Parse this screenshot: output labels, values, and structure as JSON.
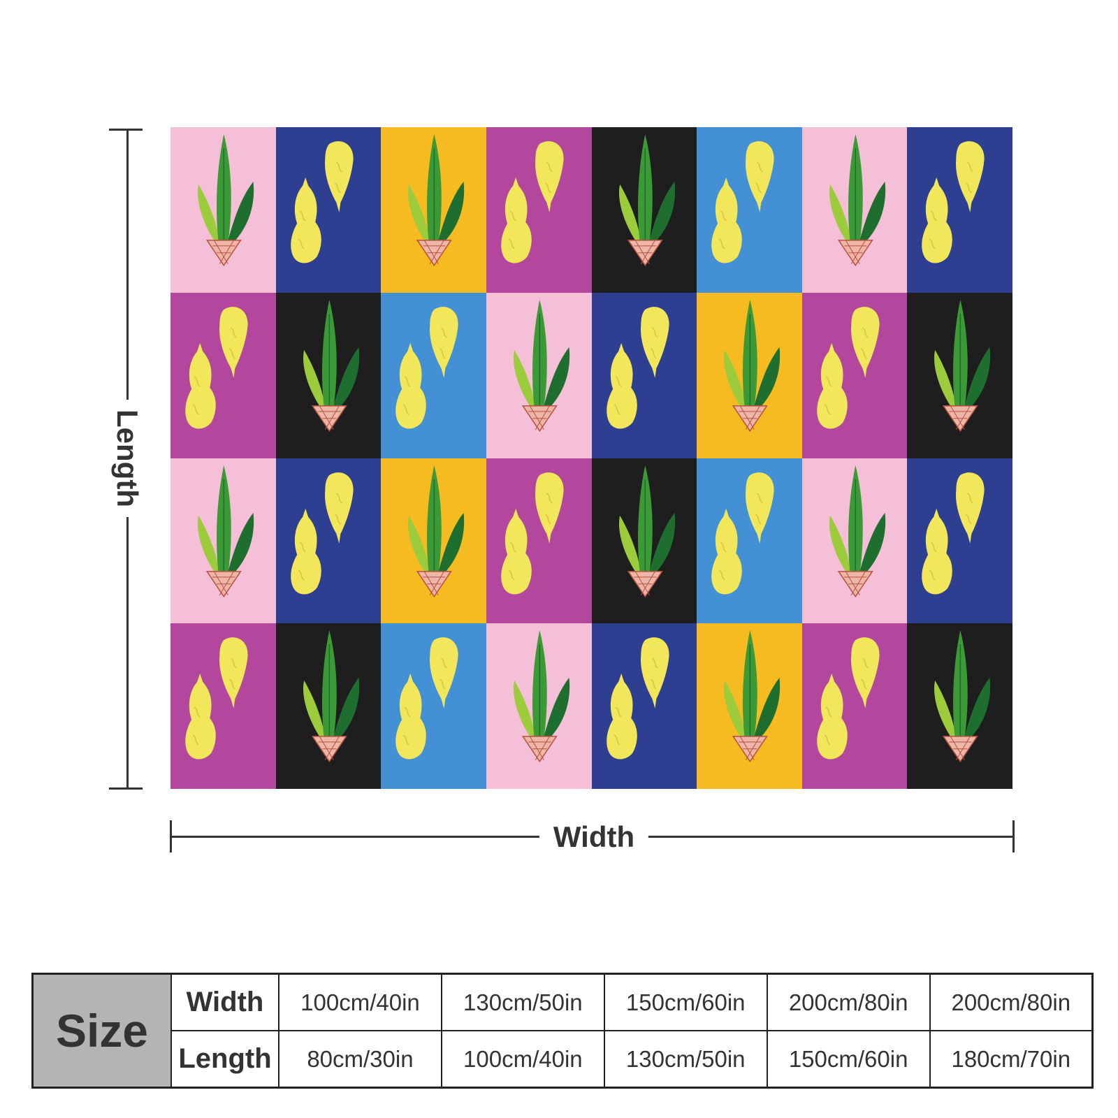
{
  "labels": {
    "length": "Length",
    "width": "Width"
  },
  "size_table": {
    "header": "Size",
    "rows": [
      {
        "label": "Width",
        "values": [
          "100cm/40in",
          "130cm/50in",
          "150cm/60in",
          "200cm/80in",
          "200cm/80in"
        ]
      },
      {
        "label": "Length",
        "values": [
          "80cm/30in",
          "100cm/40in",
          "130cm/50in",
          "150cm/60in",
          "180cm/70in"
        ]
      }
    ]
  },
  "pattern": {
    "palette": {
      "pink": "#f5bfd8",
      "navy": "#2e3f91",
      "gold": "#f5bb21",
      "magenta": "#b3479e",
      "black": "#1e1e1e",
      "sky": "#4390d4",
      "lemon": "#f2e65a",
      "leaf_light": "#9ccb3c",
      "leaf_mid": "#3b9a35",
      "leaf_dark": "#1e6e2f",
      "pot": "#eeb6a8"
    },
    "rows": [
      [
        [
          "pink",
          "plant"
        ],
        [
          "navy",
          "lemons"
        ],
        [
          "gold",
          "plant"
        ],
        [
          "magenta",
          "lemons"
        ],
        [
          "black",
          "plant"
        ],
        [
          "sky",
          "lemons"
        ],
        [
          "pink",
          "plant"
        ],
        [
          "navy",
          "lemons"
        ]
      ],
      [
        [
          "magenta",
          "lemons"
        ],
        [
          "black",
          "plant"
        ],
        [
          "sky",
          "lemons"
        ],
        [
          "pink",
          "plant"
        ],
        [
          "navy",
          "lemons"
        ],
        [
          "gold",
          "plant"
        ],
        [
          "magenta",
          "lemons"
        ],
        [
          "black",
          "plant"
        ]
      ],
      [
        [
          "pink",
          "plant"
        ],
        [
          "navy",
          "lemons"
        ],
        [
          "gold",
          "plant"
        ],
        [
          "magenta",
          "lemons"
        ],
        [
          "black",
          "plant"
        ],
        [
          "sky",
          "lemons"
        ],
        [
          "pink",
          "plant"
        ],
        [
          "navy",
          "lemons"
        ]
      ],
      [
        [
          "magenta",
          "lemons"
        ],
        [
          "black",
          "plant"
        ],
        [
          "sky",
          "lemons"
        ],
        [
          "pink",
          "plant"
        ],
        [
          "navy",
          "lemons"
        ],
        [
          "gold",
          "plant"
        ],
        [
          "magenta",
          "lemons"
        ],
        [
          "black",
          "plant"
        ]
      ]
    ]
  }
}
